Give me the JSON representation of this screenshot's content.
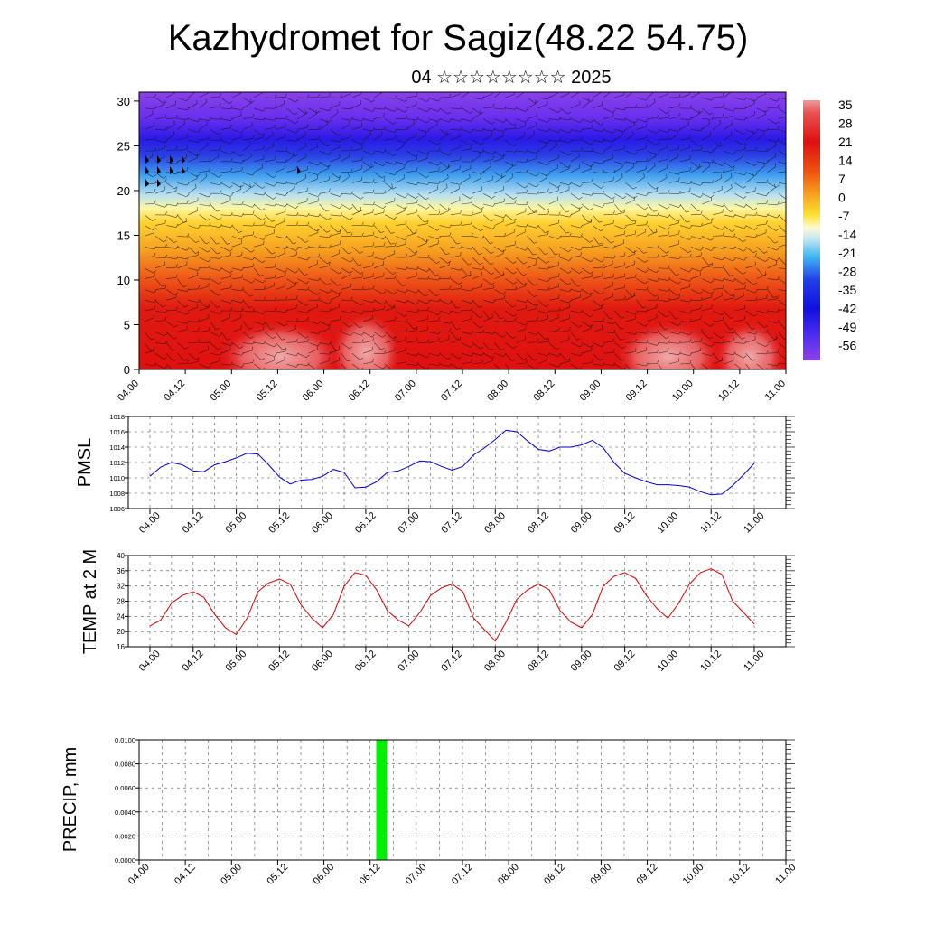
{
  "title": "Kazhydromet for Sagiz(48.22 54.75)",
  "subtitle": "04 ☆☆☆☆☆☆☆☆ 2025",
  "time_labels": [
    "04.00",
    "04.12",
    "05.00",
    "05.12",
    "06.00",
    "06.12",
    "07.00",
    "07.12",
    "08.00",
    "08.12",
    "09.00",
    "09.12",
    "10.00",
    "10.12",
    "11.00"
  ],
  "colors": {
    "pmsl_line": "#0000dd",
    "temp_line": "#dd0000",
    "precip_bar": "#00ee00"
  },
  "chart_data": [
    {
      "type": "heatmap",
      "name": "upper-air",
      "y_ticks": [
        0,
        5,
        10,
        15,
        20,
        25,
        30
      ],
      "ylim": [
        0,
        31
      ],
      "colorbar_labels": [
        "35",
        "28",
        "21",
        "14",
        "7",
        "0",
        "-7",
        "-14",
        "-21",
        "-28",
        "-35",
        "-42",
        "-49",
        "-56"
      ],
      "colorbar_range": [
        -60,
        38
      ]
    },
    {
      "type": "line",
      "ylabel": "PMSL",
      "ylim": [
        1006,
        1018
      ],
      "y_ticks": [
        1006,
        1008,
        1010,
        1012,
        1014,
        1016,
        1018
      ],
      "x_hours": [
        0,
        3,
        6,
        9,
        12,
        15,
        18,
        21,
        24,
        27,
        30,
        33,
        36,
        39,
        42,
        45,
        48,
        51,
        54,
        57,
        60,
        63,
        66,
        69,
        72,
        75,
        78,
        81,
        84,
        87,
        90,
        93,
        96,
        99,
        102,
        105,
        108,
        111,
        114,
        117,
        120,
        123,
        126,
        129,
        132,
        135,
        138,
        141,
        144,
        147,
        150,
        153,
        156,
        159,
        162,
        165,
        168
      ],
      "values": [
        1010.2,
        1011.4,
        1012.0,
        1011.7,
        1010.9,
        1010.8,
        1011.7,
        1012.1,
        1012.6,
        1013.2,
        1013.1,
        1011.7,
        1010.1,
        1009.2,
        1009.7,
        1009.8,
        1010.2,
        1011.1,
        1010.7,
        1008.7,
        1008.8,
        1009.5,
        1010.7,
        1010.9,
        1011.5,
        1012.2,
        1012.1,
        1011.5,
        1011.0,
        1011.5,
        1013.0,
        1013.9,
        1015.0,
        1016.2,
        1016.0,
        1014.8,
        1013.7,
        1013.5,
        1014.0,
        1014.0,
        1014.3,
        1014.9,
        1013.9,
        1012.0,
        1010.6,
        1010.0,
        1009.5,
        1009.1,
        1009.1,
        1009.0,
        1008.8,
        1008.2,
        1007.8,
        1007.9,
        1009.0,
        1010.4,
        1011.9
      ]
    },
    {
      "type": "line",
      "ylabel": "TEMP at 2 M",
      "ylim": [
        16,
        40
      ],
      "y_ticks": [
        16,
        20,
        24,
        28,
        32,
        36,
        40
      ],
      "x_hours": [
        0,
        3,
        6,
        9,
        12,
        15,
        18,
        21,
        24,
        27,
        30,
        33,
        36,
        39,
        42,
        45,
        48,
        51,
        54,
        57,
        60,
        63,
        66,
        69,
        72,
        75,
        78,
        81,
        84,
        87,
        90,
        93,
        96,
        99,
        102,
        105,
        108,
        111,
        114,
        117,
        120,
        123,
        126,
        129,
        132,
        135,
        138,
        141,
        144,
        147,
        150,
        153,
        156,
        159,
        162,
        165,
        168
      ],
      "values": [
        21.5,
        23.0,
        27.5,
        29.5,
        30.5,
        29.0,
        24.5,
        21.0,
        19.2,
        23.5,
        30.5,
        32.8,
        33.8,
        32.5,
        27.0,
        23.5,
        21.0,
        24.5,
        32.0,
        35.5,
        34.8,
        31.0,
        25.5,
        23.0,
        21.5,
        25.0,
        29.5,
        31.5,
        32.5,
        30.5,
        23.5,
        20.5,
        17.5,
        22.5,
        28.5,
        31.0,
        32.5,
        31.0,
        25.5,
        22.5,
        21.0,
        24.5,
        32.0,
        34.5,
        35.5,
        34.0,
        29.5,
        26.0,
        23.5,
        27.5,
        32.5,
        35.5,
        36.5,
        35.0,
        28.0,
        25.0,
        22.0
      ]
    },
    {
      "type": "bar",
      "ylabel": "PRECIP, mm",
      "ylim": [
        0,
        0.01
      ],
      "y_tick_labels": [
        "0.0000",
        "0.0020",
        "0.0040",
        "0.0060",
        "0.0080",
        "0.0100"
      ],
      "bars": [
        {
          "x_hour": 63,
          "value": 0.01
        }
      ]
    }
  ]
}
